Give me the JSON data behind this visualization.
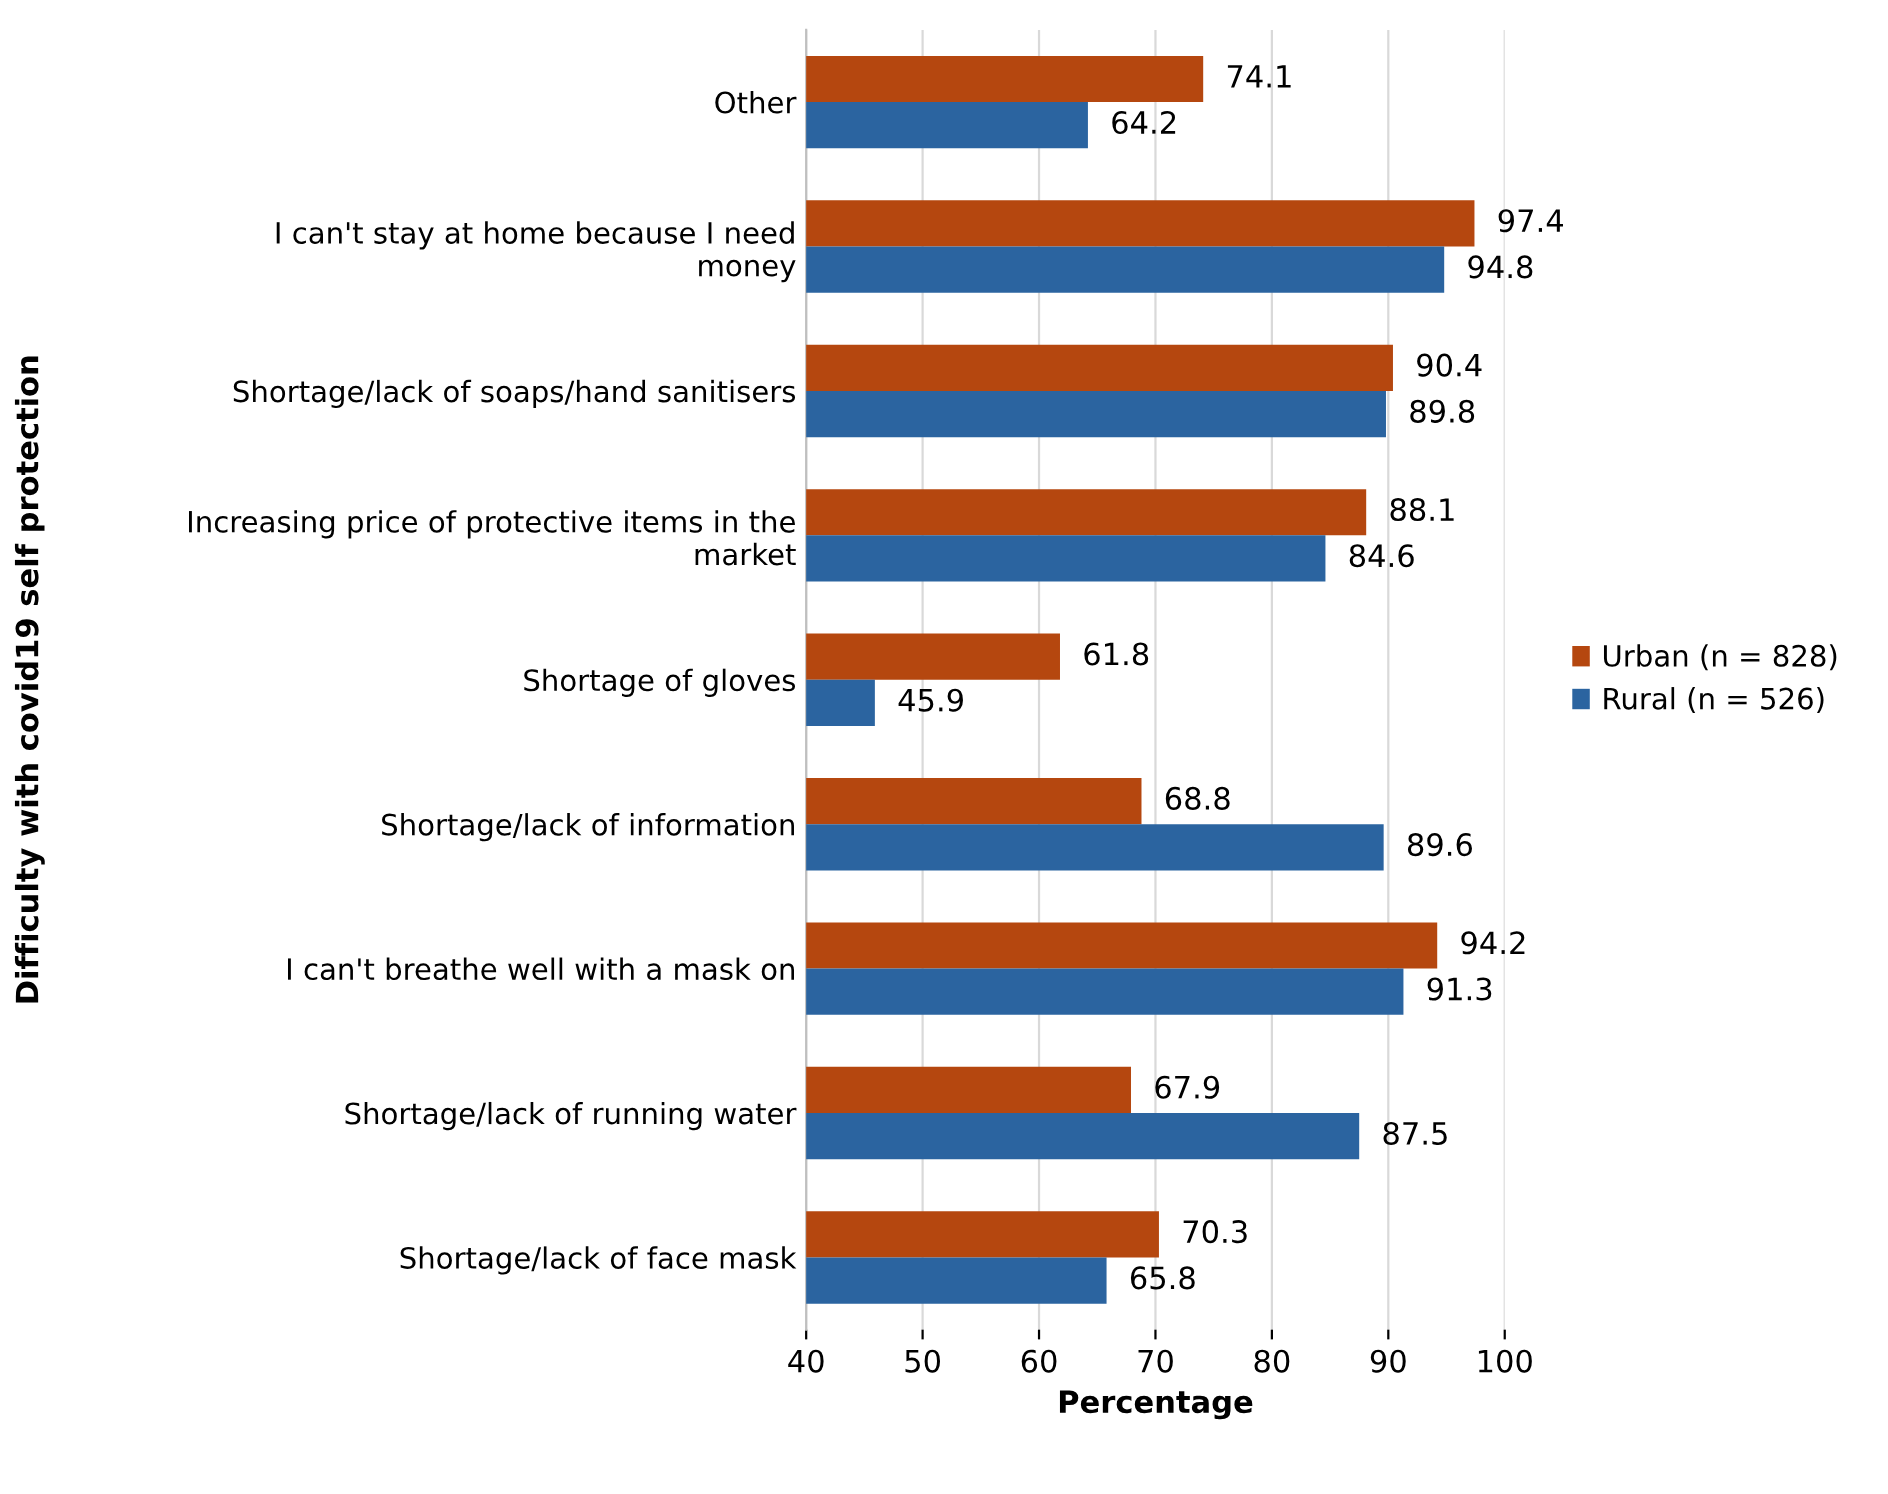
{
  "chart_data": {
    "type": "bar",
    "orientation": "horizontal",
    "xlabel": "Percentage",
    "ylabel": "Difficulty with covid19 self protection",
    "categories": [
      "Other",
      "I can't stay at home because I need\nmoney",
      "Shortage/lack of soaps/hand sanitisers",
      "Increasing price of protective items in the\nmarket",
      "Shortage of gloves",
      "Shortage/lack of information",
      "I can't breathe well with a mask on",
      "Shortage/lack of running water",
      "Shortage/lack of face mask"
    ],
    "series": [
      {
        "name": "Urban (n = 828)",
        "color": "#b5470f",
        "values": [
          74.1,
          97.4,
          90.4,
          88.1,
          61.8,
          68.8,
          94.2,
          67.9,
          70.3
        ]
      },
      {
        "name": "Rural (n = 526)",
        "color": "#2b64a0",
        "values": [
          64.2,
          94.8,
          89.8,
          84.6,
          45.9,
          89.6,
          91.3,
          87.5,
          65.8
        ]
      }
    ],
    "xlim": [
      40,
      100
    ],
    "xticks": [
      40,
      50,
      60,
      70,
      80,
      90,
      100
    ],
    "grid": "x",
    "legend": "right",
    "data_labels": true
  }
}
